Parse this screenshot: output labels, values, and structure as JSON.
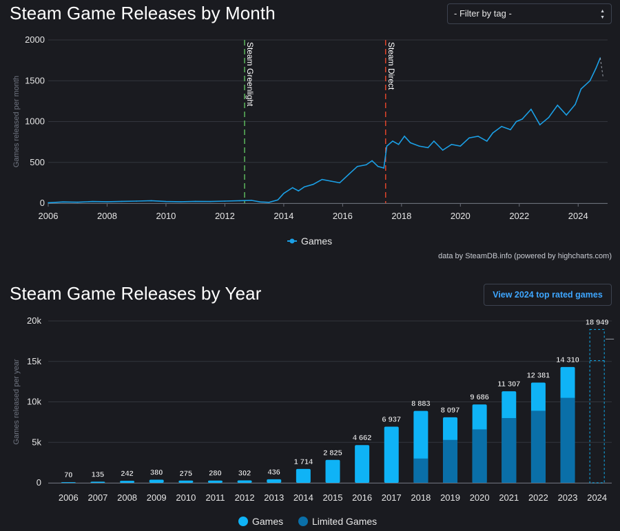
{
  "header": {
    "monthly_title": "Steam Game Releases by Month",
    "yearly_title": "Steam Game Releases by Year",
    "filter_label": "- Filter by tag -",
    "view_button": "View 2024 top rated games",
    "credit": "data by SteamDB.info (powered by highcharts.com)"
  },
  "colors": {
    "background": "#1a1b20",
    "line": "#1ba0e6",
    "games_bar": "#0fb3f6",
    "limited_bar": "#0a6fa8",
    "greenlight_line": "#5cb85c",
    "direct_line": "#e0452b",
    "grid": "#33363d",
    "accent_link": "#3ea6ff"
  },
  "chart_data": [
    {
      "type": "line",
      "title": "Steam Game Releases by Month",
      "ylabel": "Games released per month",
      "ylim": [
        0,
        2000
      ],
      "yticks": [
        "0",
        "500",
        "1000",
        "1500",
        "2000"
      ],
      "xlim": [
        2006,
        2025
      ],
      "xticks": [
        "2006",
        "2008",
        "2010",
        "2012",
        "2014",
        "2016",
        "2018",
        "2020",
        "2022",
        "2024"
      ],
      "legend": "bottom-center",
      "grid": true,
      "annotations": [
        {
          "label": "Steam Greenlight",
          "x": 2012.67
        },
        {
          "label": "Steam Direct",
          "x": 2017.46
        }
      ],
      "series": [
        {
          "name": "Games",
          "x": [
            2006.0,
            2006.5,
            2007.0,
            2007.5,
            2008.0,
            2008.5,
            2009.0,
            2009.5,
            2010.0,
            2010.5,
            2011.0,
            2011.5,
            2012.0,
            2012.5,
            2012.9,
            2013.2,
            2013.5,
            2013.8,
            2014.0,
            2014.3,
            2014.5,
            2014.7,
            2015.0,
            2015.3,
            2015.6,
            2015.9,
            2016.2,
            2016.5,
            2016.8,
            2017.0,
            2017.2,
            2017.4,
            2017.5,
            2017.7,
            2017.9,
            2018.1,
            2018.3,
            2018.6,
            2018.9,
            2019.1,
            2019.4,
            2019.7,
            2020.0,
            2020.3,
            2020.6,
            2020.9,
            2021.1,
            2021.4,
            2021.7,
            2021.9,
            2022.1,
            2022.4,
            2022.7,
            2023.0,
            2023.3,
            2023.6,
            2023.9,
            2024.1,
            2024.4,
            2024.6,
            2024.75
          ],
          "y": [
            5,
            15,
            12,
            20,
            18,
            22,
            25,
            30,
            20,
            18,
            22,
            20,
            25,
            30,
            35,
            15,
            10,
            40,
            120,
            190,
            150,
            200,
            230,
            290,
            270,
            250,
            350,
            450,
            470,
            520,
            450,
            430,
            700,
            760,
            720,
            820,
            740,
            700,
            680,
            760,
            650,
            720,
            700,
            800,
            820,
            760,
            860,
            940,
            900,
            1000,
            1030,
            1150,
            960,
            1050,
            1200,
            1080,
            1210,
            1400,
            1500,
            1650,
            1780
          ]
        }
      ]
    },
    {
      "type": "bar",
      "title": "Steam Game Releases by Year",
      "ylabel": "Games released per year",
      "ylim": [
        0,
        20000
      ],
      "yticks": [
        "0",
        "5k",
        "10k",
        "15k",
        "20k"
      ],
      "categories": [
        "2006",
        "2007",
        "2008",
        "2009",
        "2010",
        "2011",
        "2012",
        "2013",
        "2014",
        "2015",
        "2016",
        "2017",
        "2018",
        "2019",
        "2020",
        "2021",
        "2022",
        "2023",
        "2024"
      ],
      "legend": "bottom-center",
      "grid": true,
      "series": [
        {
          "name": "Games",
          "values": [
            70,
            135,
            242,
            380,
            275,
            280,
            302,
            436,
            1714,
            2825,
            4662,
            6937,
            8883,
            8097,
            9686,
            11307,
            12381,
            14310,
            18949
          ]
        },
        {
          "name": "Limited Games",
          "values": [
            0,
            0,
            0,
            0,
            0,
            0,
            0,
            0,
            0,
            0,
            0,
            0,
            3000,
            5300,
            6600,
            8000,
            8900,
            10500,
            null
          ]
        }
      ],
      "data_labels": [
        "70",
        "135",
        "242",
        "380",
        "275",
        "280",
        "302",
        "436",
        "1 714",
        "2 825",
        "4 662",
        "6 937",
        "8 883",
        "8 097",
        "9 686",
        "11 307",
        "12 381",
        "14 310",
        "18 949"
      ],
      "projected_category": "2024"
    }
  ]
}
